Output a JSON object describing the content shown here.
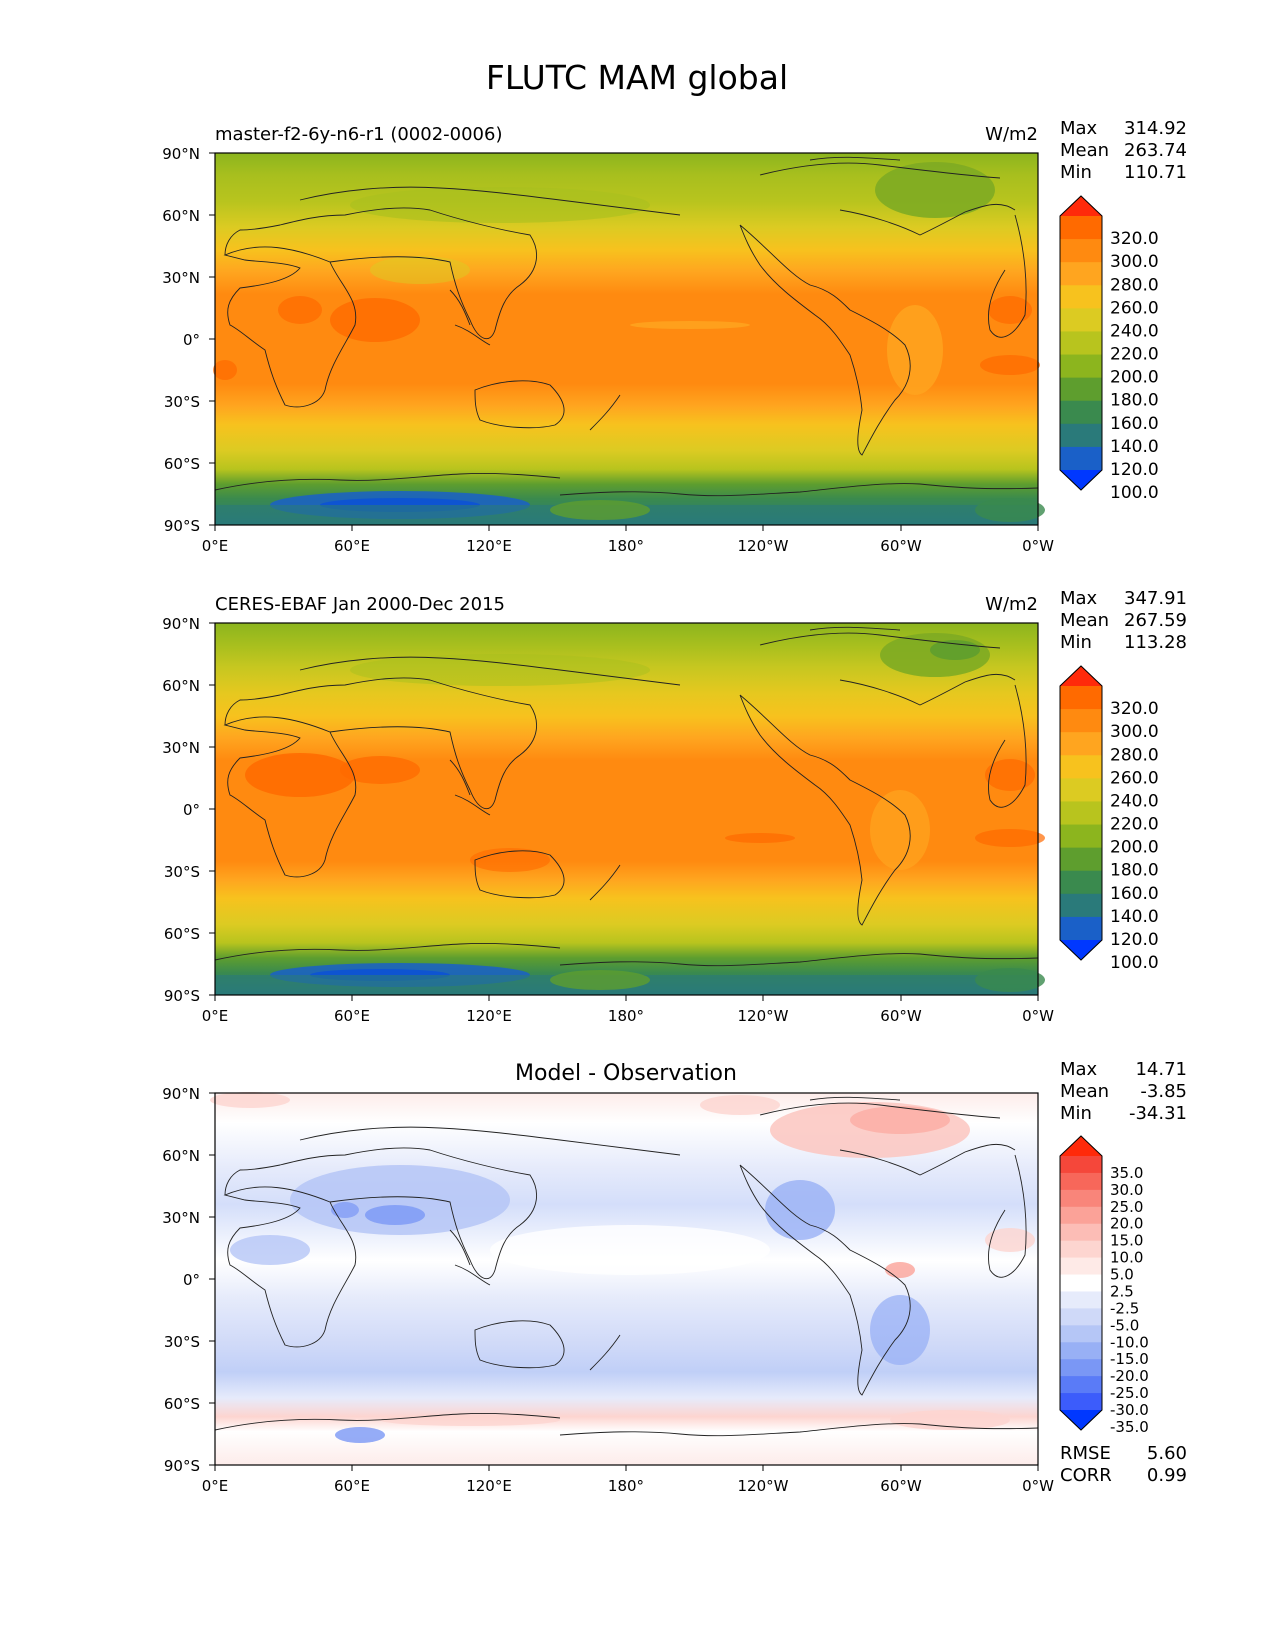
{
  "figure": {
    "title": "FLUTC MAM global"
  },
  "axes": {
    "lat_ticks": [
      "90°N",
      "60°N",
      "30°N",
      "0°",
      "30°S",
      "60°S",
      "90°S"
    ],
    "lon_ticks": [
      "0°E",
      "60°E",
      "120°E",
      "180°",
      "120°W",
      "60°W",
      "0°W"
    ]
  },
  "panels": [
    {
      "id": "model",
      "title_left": "master-f2-6y-n6-r1 (0002-0006)",
      "title_center": "",
      "units": "W/m2",
      "stats": [
        {
          "label": "Max",
          "value": "314.92"
        },
        {
          "label": "Mean",
          "value": "263.74"
        },
        {
          "label": "Min",
          "value": "110.71"
        }
      ],
      "colorbar": {
        "labels": [
          "320.0",
          "300.0",
          "280.0",
          "260.0",
          "240.0",
          "220.0",
          "200.0",
          "180.0",
          "160.0",
          "140.0",
          "120.0",
          "100.0"
        ],
        "colors": [
          "#ff2a0a",
          "#ff6a00",
          "#ff8a10",
          "#ffa51f",
          "#f7c21e",
          "#dccb22",
          "#b8c41e",
          "#8cb51e",
          "#5e9e2e",
          "#3a8a4e",
          "#2a7a7a",
          "#1a60c8",
          "#0038ff"
        ]
      }
    },
    {
      "id": "obs",
      "title_left": "CERES-EBAF Jan 2000-Dec 2015",
      "title_center": "",
      "units": "W/m2",
      "stats": [
        {
          "label": "Max",
          "value": "347.91"
        },
        {
          "label": "Mean",
          "value": "267.59"
        },
        {
          "label": "Min",
          "value": "113.28"
        }
      ],
      "colorbar": {
        "labels": [
          "320.0",
          "300.0",
          "280.0",
          "260.0",
          "240.0",
          "220.0",
          "200.0",
          "180.0",
          "160.0",
          "140.0",
          "120.0",
          "100.0"
        ],
        "colors": [
          "#ff2a0a",
          "#ff6a00",
          "#ff8a10",
          "#ffa51f",
          "#f7c21e",
          "#dccb22",
          "#b8c41e",
          "#8cb51e",
          "#5e9e2e",
          "#3a8a4e",
          "#2a7a7a",
          "#1a60c8",
          "#0038ff"
        ]
      }
    },
    {
      "id": "diff",
      "title_left": "",
      "title_center": "Model - Observation",
      "units": "",
      "stats": [
        {
          "label": "Max",
          "value": "14.71"
        },
        {
          "label": "Mean",
          "value": "-3.85"
        },
        {
          "label": "Min",
          "value": "-34.31"
        }
      ],
      "extra_stats": [
        {
          "label": "RMSE",
          "value": "5.60"
        },
        {
          "label": "CORR",
          "value": "0.99"
        }
      ],
      "colorbar": {
        "labels": [
          "35.0",
          "30.0",
          "25.0",
          "20.0",
          "15.0",
          "10.0",
          "5.0",
          "2.5",
          "-2.5",
          "-5.0",
          "-10.0",
          "-15.0",
          "-20.0",
          "-25.0",
          "-30.0",
          "-35.0"
        ],
        "colors": [
          "#ff2a0a",
          "#f5473a",
          "#f7675a",
          "#f9857a",
          "#fba298",
          "#fcbdb6",
          "#fdd5d0",
          "#feeae7",
          "#ffffff",
          "#e6ebfb",
          "#cfd9f8",
          "#b5c6f6",
          "#98b0f5",
          "#7a97f5",
          "#5a7bf7",
          "#3c5cfb",
          "#0038ff"
        ]
      }
    }
  ]
}
